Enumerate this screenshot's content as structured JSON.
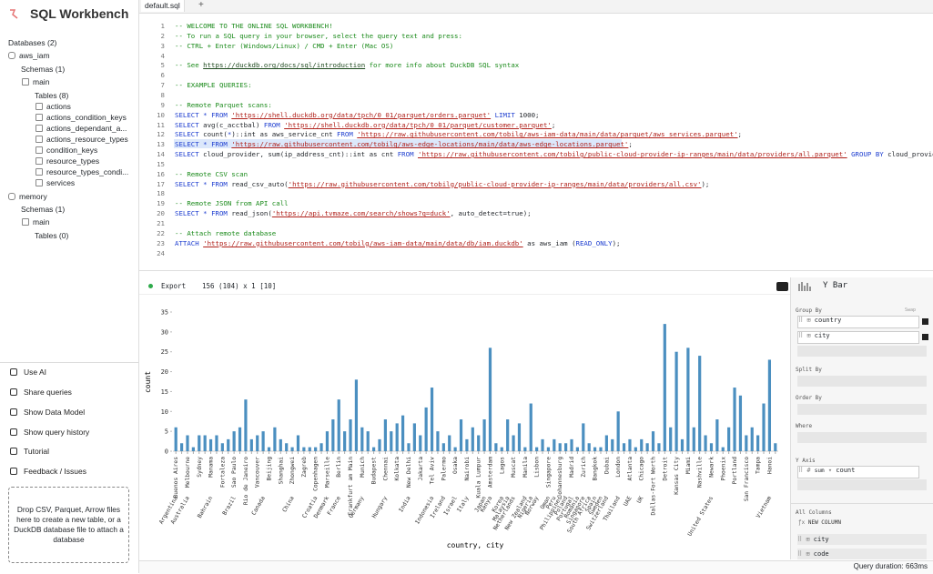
{
  "header": {
    "title": "SQL Workbench"
  },
  "tabs": [
    "default.sql"
  ],
  "sidebar": {
    "tree": [
      "Databases (2)",
      "aws_iam",
      "Schemas (1)",
      "main",
      "Tables (8)",
      "actions",
      "actions_condition_keys",
      "actions_dependant_a...",
      "actions_resource_types",
      "condition_keys",
      "resource_types",
      "resource_types_condi...",
      "services",
      "memory",
      "Schemas (1)",
      "main",
      "Tables (0)"
    ],
    "actions": [
      "Use AI",
      "Share queries",
      "Show Data Model",
      "Show query history",
      "Tutorial",
      "Feedback / Issues"
    ],
    "drop_zone": "Drop CSV, Parquet, Arrow files here to create a new table, or a DuckDB database file to attach a database"
  },
  "editor": {
    "lines": [
      {
        "number": 1,
        "text": "-- WELCOME TO THE ONLINE SQL WORKBENCH!"
      },
      {
        "number": 2,
        "text": "-- To run a SQL query in your browser, select the query text and press:"
      },
      {
        "number": 3,
        "text": "-- CTRL + Enter (Windows/Linux) / CMD + Enter (Mac OS)"
      },
      {
        "number": 4
      },
      {
        "number": 5,
        "text": "-- See https://duckdb.org/docs/sql/introduction for more info about DuckDB SQL syntax"
      },
      {
        "number": 6
      },
      {
        "number": 7,
        "text": "-- EXAMPLE QUERIES:"
      },
      {
        "number": 8
      },
      {
        "number": 9,
        "text": "-- Remote Parquet scans:"
      },
      {
        "number": 10,
        "text": "SELECT * FROM 'https://shell.duckdb.org/data/tpch/0_01/parquet/orders.parquet' LIMIT 1000;"
      },
      {
        "number": 11,
        "text": "SELECT avg(c_acctbal) FROM 'https://shell.duckdb.org/data/tpch/0_01/parquet/customer.parquet';"
      },
      {
        "number": 12,
        "text": "SELECT count(*)::int as aws_service_cnt FROM 'https://raw.githubusercontent.com/tobilg/aws-iam-data/main/data/parquet/aws_services.parquet';"
      },
      {
        "number": 13,
        "text": "SELECT * FROM 'https://raw.githubusercontent.com/tobilg/aws-edge-locations/main/data/aws-edge-locations.parquet';"
      },
      {
        "number": 14,
        "text": "SELECT cloud_provider, sum(ip_address_cnt)::int as cnt FROM 'https://raw.githubusercontent.com/tobilg/public-cloud-provider-ip-ranges/main/data/providers/all.parquet' GROUP BY cloud_provider;"
      },
      {
        "number": 15
      },
      {
        "number": 16,
        "text": "-- Remote CSV scan"
      },
      {
        "number": 17,
        "text": "SELECT * FROM read_csv_auto('https://raw.githubusercontent.com/tobilg/public-cloud-provider-ip-ranges/main/data/providers/all.csv');"
      },
      {
        "number": 18
      },
      {
        "number": 19,
        "text": "-- Remote JSON from API call"
      },
      {
        "number": 20,
        "text": "SELECT * FROM read_json('https://api.tvmaze.com/search/shows?q=duck', auto_detect=true);"
      },
      {
        "number": 21
      },
      {
        "number": 22,
        "text": "-- Attach remote database"
      },
      {
        "number": 23,
        "text": "ATTACH 'https://raw.githubusercontent.com/tobilg/aws-iam-data/main/data/db/iam.duckdb' as aws_iam (READ_ONLY);"
      },
      {
        "number": 24
      }
    ]
  },
  "results": {
    "export": "Export",
    "shape": "156 (104) x 1 [10]"
  },
  "chart_data": {
    "type": "bar",
    "color": "#4b8fc0",
    "x_label": "country, city",
    "y_label": "count",
    "ylim": [
      0,
      35
    ],
    "yticks": [
      0,
      5,
      10,
      15,
      20,
      25,
      30,
      35
    ],
    "categories": [
      "Buenos Aires",
      null,
      "Melbourne",
      null,
      "Sydney",
      null,
      "Manama",
      null,
      "Fortaleza",
      null,
      "Sao Paulo",
      null,
      "Rio de Janeiro",
      null,
      "Vancouver",
      null,
      "Beijing",
      null,
      "Shanghai",
      null,
      "Zhongwei",
      null,
      "Zagreb",
      null,
      "Copenhagen",
      null,
      "Marseille",
      null,
      "Berlin",
      null,
      "Frankfurt am Main",
      null,
      "Munich",
      null,
      "Budapest",
      null,
      "Chennai",
      null,
      "Kolkata",
      null,
      "New Delhi",
      null,
      "Jakarta",
      null,
      "Tel Aviv",
      null,
      "Palermo",
      null,
      "Osaka",
      null,
      "Nairobi",
      null,
      "Kuala Lumpur",
      null,
      "Amsterdam",
      null,
      "Lagos",
      null,
      "Muscat",
      null,
      "Manila",
      null,
      "Lisbon",
      null,
      "Singapore",
      null,
      "Johannesburg",
      null,
      "Madrid",
      null,
      "Zurich",
      null,
      "Bangkok",
      null,
      "Dubai",
      null,
      "London",
      null,
      "Atlanta",
      null,
      "Chicago",
      null,
      "Dallas-Fort Worth",
      null,
      "Detroit",
      null,
      "Kansas City",
      null,
      "Miami",
      null,
      "Nashville",
      null,
      "Newark",
      null,
      "Phoenix",
      null,
      "Portland",
      null,
      "San Francisco",
      null,
      "Tampa",
      null,
      "Hanoi",
      null
    ],
    "groups": [
      "Argentina",
      null,
      "Australia",
      null,
      null,
      null,
      "Bahrain",
      null,
      null,
      null,
      "Brazil",
      null,
      null,
      null,
      null,
      "Canada",
      null,
      null,
      null,
      null,
      "China",
      null,
      null,
      null,
      "Croatia",
      null,
      "Denmark",
      null,
      "France",
      null,
      null,
      null,
      "Germany",
      null,
      null,
      null,
      "Hungary",
      null,
      null,
      null,
      "India",
      null,
      null,
      null,
      "Indonesia",
      null,
      "Ireland",
      null,
      "Israel",
      null,
      "Italy",
      null,
      null,
      "Japan",
      "Kenya",
      null,
      "Korea",
      "Malaysia",
      "Netherlands",
      null,
      "New Zealand",
      "Nigeria",
      "Norway",
      null,
      "Oman",
      "Peru",
      "Philippines",
      "Poland",
      "Portugal",
      "Romania",
      "Singapore",
      "South Africa",
      "Spain",
      "Sweden",
      "Switzerland",
      null,
      "Thailand",
      null,
      "UAE",
      null,
      "UK",
      null,
      null,
      null,
      null,
      null,
      null,
      null,
      null,
      null,
      null,
      null,
      "United States",
      null,
      null,
      null,
      null,
      null,
      null,
      null,
      null,
      null,
      "Vietnam",
      null
    ],
    "values": [
      6,
      2,
      4,
      1,
      4,
      4,
      3,
      4,
      2,
      3,
      5,
      6,
      13,
      3,
      4,
      5,
      1,
      6,
      3,
      2,
      1,
      4,
      1,
      1,
      1,
      2,
      5,
      8,
      13,
      5,
      8,
      18,
      6,
      5,
      1,
      3,
      8,
      5,
      7,
      9,
      2,
      7,
      4,
      11,
      16,
      5,
      2,
      4,
      1,
      8,
      3,
      6,
      4,
      8,
      26,
      2,
      1,
      8,
      4,
      7,
      1,
      12,
      1,
      3,
      1,
      3,
      2,
      2,
      3,
      1,
      7,
      2,
      1,
      1,
      4,
      3,
      10,
      2,
      3,
      1,
      3,
      2,
      5,
      2,
      32,
      6,
      25,
      3,
      26,
      6,
      24,
      4,
      2,
      8,
      1,
      6,
      16,
      14,
      4,
      6,
      4,
      12,
      23,
      2
    ]
  },
  "panel": {
    "title": "Y Bar",
    "group_by": "Group By",
    "swap": "Swap",
    "group_fields": [
      "country",
      "city"
    ],
    "split_by": "Split By",
    "order_by": "Order By",
    "where": "Where",
    "y_axis": "Y Axis",
    "aggregate": "sum",
    "y_field": "count",
    "all_columns": "All Columns",
    "new_column": "NEW COLUMN",
    "columns": [
      "city",
      "code"
    ]
  },
  "status": "Query duration: 663ms"
}
